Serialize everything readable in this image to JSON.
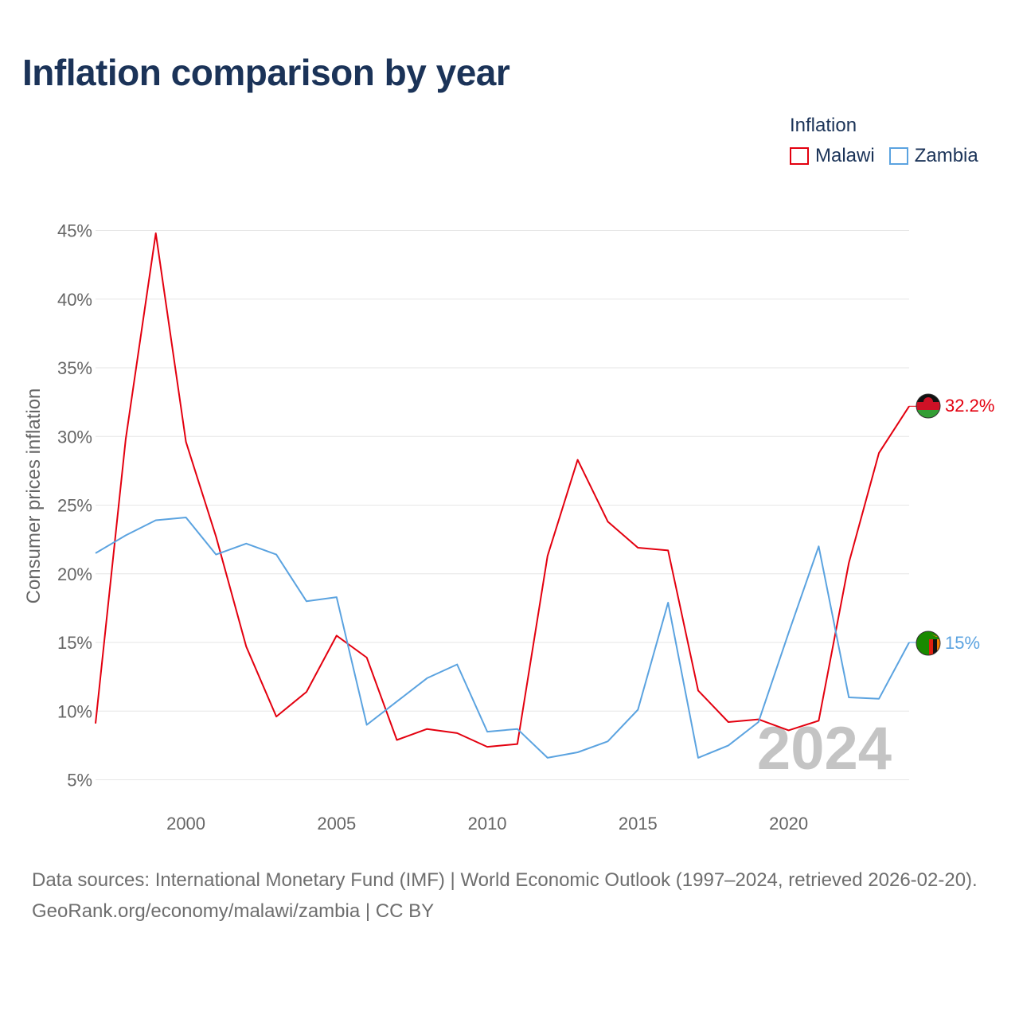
{
  "title": "Inflation comparison by year",
  "legend": {
    "title": "Inflation",
    "items": [
      {
        "label": "Malawi",
        "color": "#e3000f"
      },
      {
        "label": "Zambia",
        "color": "#5ba3e0"
      }
    ]
  },
  "year_watermark": "2024",
  "chart_data": {
    "type": "line",
    "title": "Inflation comparison by year",
    "xlabel": "",
    "ylabel": "Consumer prices inflation",
    "xlim": [
      1997,
      2024
    ],
    "ylim": [
      3,
      47
    ],
    "x_ticks": [
      2000,
      2005,
      2010,
      2015,
      2020
    ],
    "y_ticks": [
      {
        "value": 5,
        "label": "5%"
      },
      {
        "value": 10,
        "label": "10%"
      },
      {
        "value": 15,
        "label": "15%"
      },
      {
        "value": 20,
        "label": "20%"
      },
      {
        "value": 25,
        "label": "25%"
      },
      {
        "value": 30,
        "label": "30%"
      },
      {
        "value": 35,
        "label": "35%"
      },
      {
        "value": 40,
        "label": "40%"
      },
      {
        "value": 45,
        "label": "45%"
      }
    ],
    "grid": true,
    "legend_position": "top-right",
    "x": [
      1997,
      1998,
      1999,
      2000,
      2001,
      2002,
      2003,
      2004,
      2005,
      2006,
      2007,
      2008,
      2009,
      2010,
      2011,
      2012,
      2013,
      2014,
      2015,
      2016,
      2017,
      2018,
      2019,
      2020,
      2021,
      2022,
      2023,
      2024
    ],
    "series": [
      {
        "name": "Malawi",
        "color": "#e3000f",
        "end_label": "32.2%",
        "values": [
          9.1,
          29.8,
          44.8,
          29.6,
          22.7,
          14.7,
          9.6,
          11.4,
          15.5,
          13.9,
          7.9,
          8.7,
          8.4,
          7.4,
          7.6,
          21.3,
          28.3,
          23.8,
          21.9,
          21.7,
          11.5,
          9.2,
          9.4,
          8.6,
          9.3,
          20.8,
          28.8,
          32.2
        ]
      },
      {
        "name": "Zambia",
        "color": "#5ba3e0",
        "end_label": "15%",
        "values": [
          21.5,
          22.8,
          23.9,
          24.1,
          21.4,
          22.2,
          21.4,
          18.0,
          18.3,
          9.0,
          10.7,
          12.4,
          13.4,
          8.5,
          8.7,
          6.6,
          7.0,
          7.8,
          10.1,
          17.9,
          6.6,
          7.5,
          9.2,
          15.7,
          22.0,
          11.0,
          10.9,
          15.0
        ]
      }
    ]
  },
  "footer": {
    "sources": "Data sources: International Monetary Fund (IMF) | World Economic Outlook (1997–2024, retrieved 2026-02-20).",
    "credit": "GeoRank.org/economy/malawi/zambia | CC BY"
  }
}
